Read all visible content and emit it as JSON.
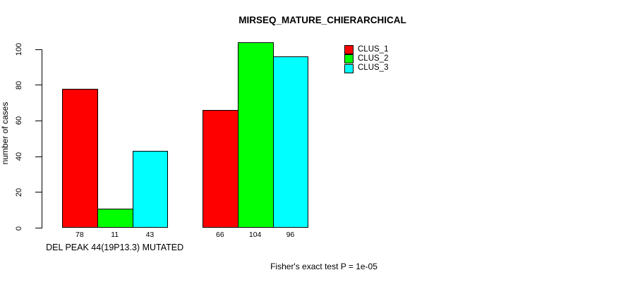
{
  "chart_data": {
    "type": "bar",
    "title": "MIRSEQ_MATURE_CHIERARCHICAL",
    "ylabel": "number of cases",
    "xlabel": "",
    "ylim": [
      0,
      100
    ],
    "yticks": [
      0,
      20,
      40,
      60,
      80,
      100
    ],
    "grid": false,
    "legend_position": "top-right",
    "series": [
      {
        "name": "CLUS_1",
        "color": "#ff0000"
      },
      {
        "name": "CLUS_2",
        "color": "#00ff00"
      },
      {
        "name": "CLUS_3",
        "color": "#00ffff"
      }
    ],
    "groups": [
      {
        "label": "DEL PEAK 44(19P13.3) MUTATED",
        "values": [
          78,
          11,
          43
        ]
      },
      {
        "label": "",
        "values": [
          66,
          104,
          96
        ]
      }
    ],
    "bar_value_labels": [
      [
        "78",
        "11",
        "43"
      ],
      [
        "66",
        "104",
        "96"
      ]
    ],
    "annotation": "Fisher's exact test P = 1e-05",
    "colors": {
      "background": "#ffffff",
      "axis": "#000000",
      "text": "#000000",
      "bar_border": "#000000"
    }
  }
}
